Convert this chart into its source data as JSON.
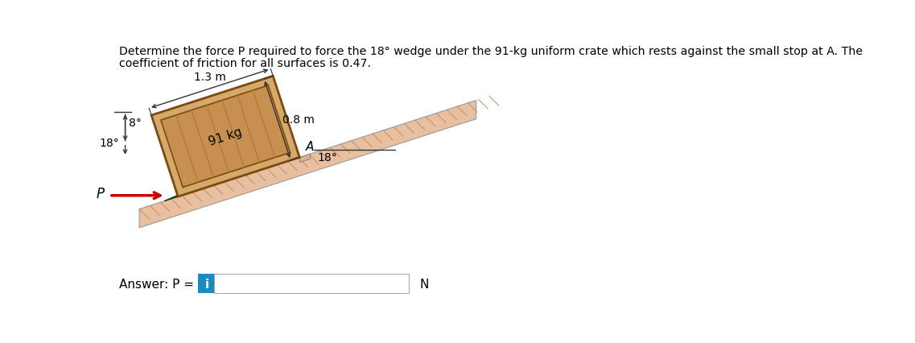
{
  "title_line1": "Determine the force P required to force the 18° wedge under the 91-kg uniform crate which rests against the small stop at A. The",
  "title_line2": "coefficient of friction for all surfaces is 0.47.",
  "answer_label": "Answer: P = ",
  "answer_unit": "N",
  "crate_label": "91 kg",
  "dim_top": "1.3 m",
  "dim_right": "0.8 m",
  "label_A": "A",
  "label_P": "P",
  "angle_wedge_label": "18°",
  "angle_left_label": "18°",
  "angle_8deg_label": "8°",
  "bg_color": "#ffffff",
  "crate_fill": "#d4a96a",
  "crate_inner_fill": "#c89050",
  "crate_border": "#7a4a10",
  "plank_color": "#b07830",
  "wedge_color": "#2d5e2d",
  "wedge_edge": "#1a3d1a",
  "floor_fill": "#e8c0a0",
  "floor_hatch": "#c09070",
  "stop_fill": "#ddb090",
  "arrow_color": "#cc0000",
  "text_color": "#000000",
  "dim_color": "#333333",
  "input_box_color": "#1a8abf",
  "input_box_text": "i"
}
